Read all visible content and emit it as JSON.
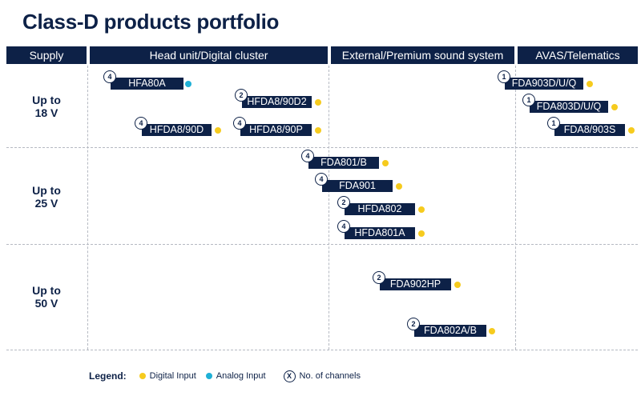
{
  "title": "Class-D products portfolio",
  "columns": [
    "Supply",
    "Head unit/Digital cluster",
    "External/Premium sound system",
    "AVAS/Telematics"
  ],
  "rows": [
    {
      "line1": "Up to",
      "line2": "18 V"
    },
    {
      "line1": "Up to",
      "line2": "25 V"
    },
    {
      "line1": "Up to",
      "line2": "50 V"
    }
  ],
  "colors": {
    "navy": "#0d2147",
    "digital": "#f6cb1e",
    "analog": "#1fb0d6"
  },
  "products": [
    {
      "name": "HFA80A",
      "channels": "4",
      "input": "analog"
    },
    {
      "name": "HFDA8/90D2",
      "channels": "2",
      "input": "digital"
    },
    {
      "name": "HFDA8/90D",
      "channels": "4",
      "input": "digital"
    },
    {
      "name": "HFDA8/90P",
      "channels": "4",
      "input": "digital"
    },
    {
      "name": "FDA903D/U/Q",
      "channels": "1",
      "input": "digital"
    },
    {
      "name": "FDA803D/U/Q",
      "channels": "1",
      "input": "digital"
    },
    {
      "name": "FDA8/903S",
      "channels": "1",
      "input": "digital"
    },
    {
      "name": "FDA801/B",
      "channels": "4",
      "input": "digital"
    },
    {
      "name": "FDA901",
      "channels": "4",
      "input": "digital"
    },
    {
      "name": "HFDA802",
      "channels": "2",
      "input": "digital"
    },
    {
      "name": "HFDA801A",
      "channels": "4",
      "input": "digital"
    },
    {
      "name": "FDA902HP",
      "channels": "2",
      "input": "digital"
    },
    {
      "name": "FDA802A/B",
      "channels": "2",
      "input": "digital"
    }
  ],
  "legend": {
    "title": "Legend:",
    "digital": "Digital Input",
    "analog": "Analog Input",
    "channels_symbol": "X",
    "channels": "No. of channels"
  }
}
